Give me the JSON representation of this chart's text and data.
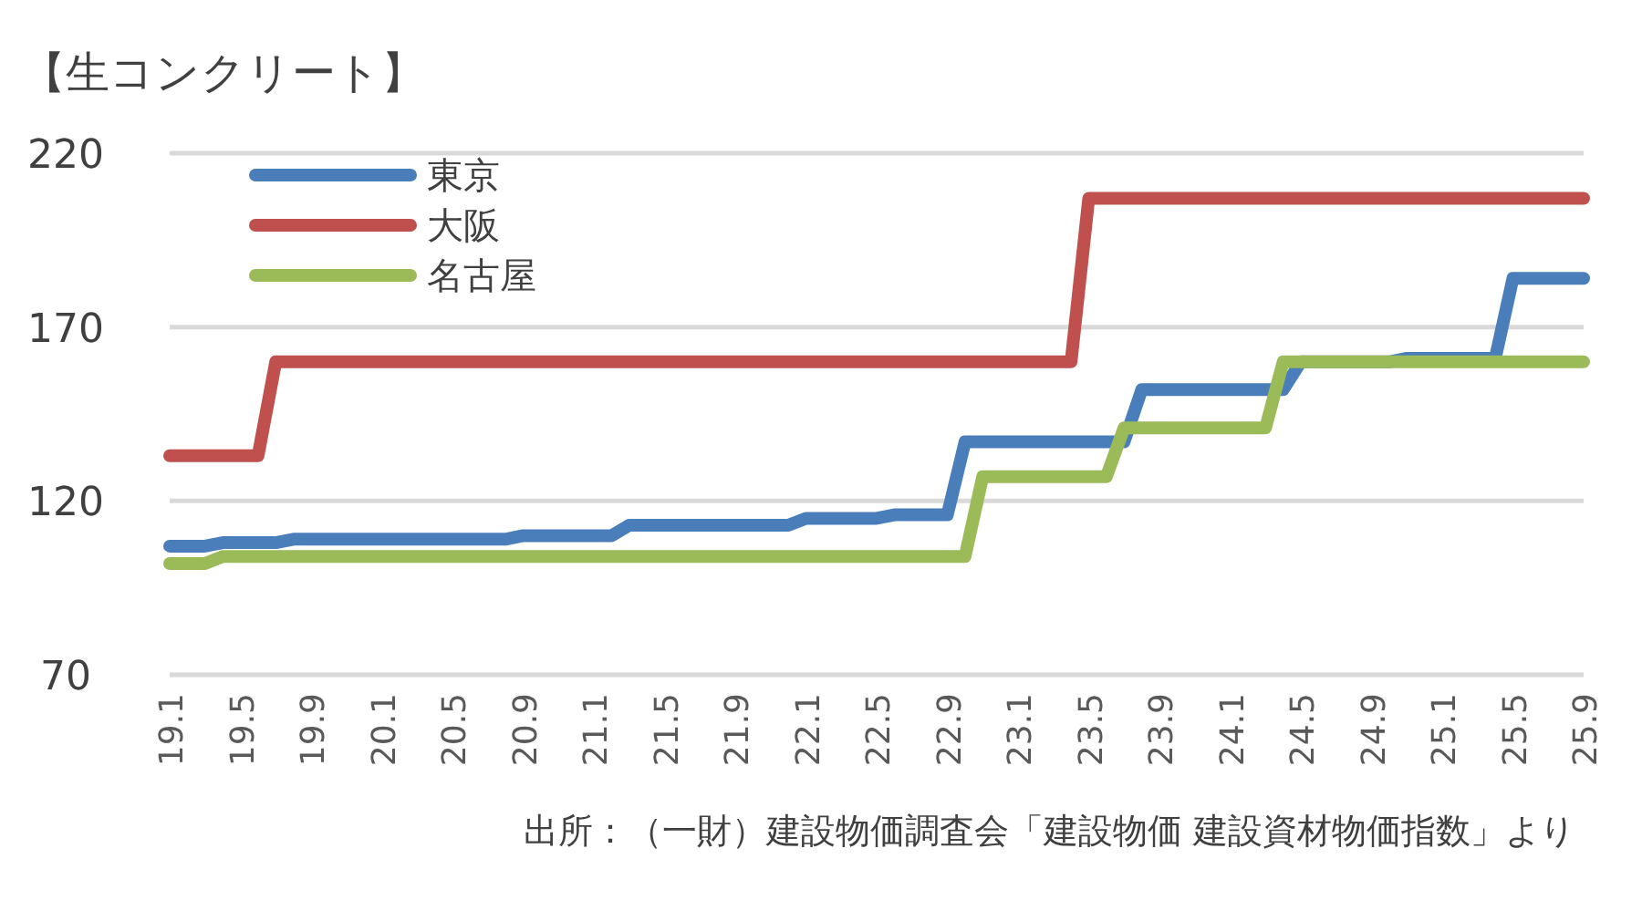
{
  "chart_data": {
    "type": "line",
    "title": "【生コンクリート】",
    "categories": [
      "19.1",
      null,
      null,
      null,
      "19.5",
      null,
      null,
      null,
      "19.9",
      null,
      null,
      null,
      "20.1",
      null,
      null,
      null,
      "20.5",
      null,
      null,
      null,
      "20.9",
      null,
      null,
      null,
      "21.1",
      null,
      null,
      null,
      "21.5",
      null,
      null,
      null,
      "21.9",
      null,
      null,
      null,
      "22.1",
      null,
      null,
      null,
      "22.5",
      null,
      null,
      null,
      "22.9",
      null,
      null,
      null,
      "23.1",
      null,
      null,
      null,
      "23.5",
      null,
      null,
      null,
      "23.9",
      null,
      null,
      null,
      "24.1",
      null,
      null,
      null,
      "24.5",
      null,
      null,
      null,
      "24.9",
      null,
      null,
      null,
      "25.1",
      null,
      null,
      null,
      "25.5",
      null,
      null,
      null,
      "25.9"
    ],
    "series": [
      {
        "name": "東京",
        "color": "#4a7ebb",
        "values": [
          107,
          107,
          107,
          108,
          108,
          108,
          108,
          109,
          109,
          109,
          109,
          109,
          109,
          109,
          109,
          109,
          109,
          109,
          109,
          109,
          110,
          110,
          110,
          110,
          110,
          110,
          113,
          113,
          113,
          113,
          113,
          113,
          113,
          113,
          113,
          113,
          115,
          115,
          115,
          115,
          115,
          116,
          116,
          116,
          116,
          137,
          137,
          137,
          137,
          137,
          137,
          137,
          137,
          137,
          137,
          152,
          152,
          152,
          152,
          152,
          152,
          152,
          152,
          152,
          160,
          160,
          160,
          160,
          160,
          160,
          161,
          161,
          161,
          161,
          161,
          161,
          184,
          184,
          184,
          184,
          184
        ]
      },
      {
        "name": "大阪",
        "color": "#c0504d",
        "values": [
          133,
          133,
          133,
          133,
          133,
          133,
          160,
          160,
          160,
          160,
          160,
          160,
          160,
          160,
          160,
          160,
          160,
          160,
          160,
          160,
          160,
          160,
          160,
          160,
          160,
          160,
          160,
          160,
          160,
          160,
          160,
          160,
          160,
          160,
          160,
          160,
          160,
          160,
          160,
          160,
          160,
          160,
          160,
          160,
          160,
          160,
          160,
          160,
          160,
          160,
          160,
          160,
          207,
          207,
          207,
          207,
          207,
          207,
          207,
          207,
          207,
          207,
          207,
          207,
          207,
          207,
          207,
          207,
          207,
          207,
          207,
          207,
          207,
          207,
          207,
          207,
          207,
          207,
          207,
          207,
          207
        ]
      },
      {
        "name": "名古屋",
        "color": "#9bbb59",
        "values": [
          102,
          102,
          102,
          104,
          104,
          104,
          104,
          104,
          104,
          104,
          104,
          104,
          104,
          104,
          104,
          104,
          104,
          104,
          104,
          104,
          104,
          104,
          104,
          104,
          104,
          104,
          104,
          104,
          104,
          104,
          104,
          104,
          104,
          104,
          104,
          104,
          104,
          104,
          104,
          104,
          104,
          104,
          104,
          104,
          104,
          104,
          127,
          127,
          127,
          127,
          127,
          127,
          127,
          127,
          141,
          141,
          141,
          141,
          141,
          141,
          141,
          141,
          141,
          160,
          160,
          160,
          160,
          160,
          160,
          160,
          160,
          160,
          160,
          160,
          160,
          160,
          160,
          160,
          160,
          160,
          160
        ]
      }
    ],
    "ylim": [
      70,
      220
    ],
    "yticks": [
      70,
      120,
      170,
      220
    ],
    "grid": "y",
    "legend": "top left",
    "annotations": [
      "出所：（一財）建設物価調査会「建設物価 建設資材物価指数」より"
    ]
  }
}
